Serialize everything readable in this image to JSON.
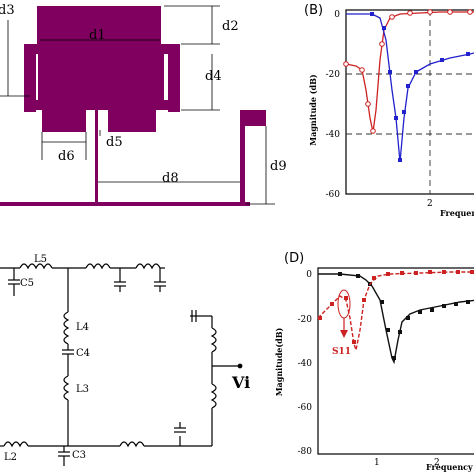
{
  "panel_a": {
    "dims": {
      "d1": "d1",
      "d2": "d2",
      "d3": "d3",
      "d4": "d4",
      "d5": "d5",
      "d6": "d6",
      "d8": "d8",
      "d9": "d9"
    },
    "colors": {
      "metal": "#800060",
      "line": "#000000"
    }
  },
  "panel_b": {
    "panel_label": "(B)",
    "y_label": "Magnitude (dB)",
    "x_label": "Frequency (GHz)",
    "y_ticks": [
      "0",
      "-20",
      "-40",
      "-60"
    ],
    "x_ticks": [
      "2"
    ],
    "series": [
      {
        "color": "#2222cc",
        "marker": "square"
      },
      {
        "color": "#cc2222",
        "marker": "circle"
      }
    ]
  },
  "panel_c": {
    "components": [
      "L5",
      "C5",
      "L4",
      "C4",
      "L3",
      "L2",
      "C3"
    ],
    "source_label": "Vi"
  },
  "panel_d": {
    "panel_label": "(D)",
    "y_label": "Magnitude(dB)",
    "x_label": "Frequency (GHz)",
    "y_ticks": [
      "0",
      "-20",
      "-40",
      "-60",
      "-80"
    ],
    "x_ticks": [
      "1",
      "2"
    ],
    "annotation": "S11",
    "series": [
      {
        "color": "#cc2222",
        "marker": "square"
      },
      {
        "color": "#111111",
        "marker": "square"
      }
    ]
  }
}
